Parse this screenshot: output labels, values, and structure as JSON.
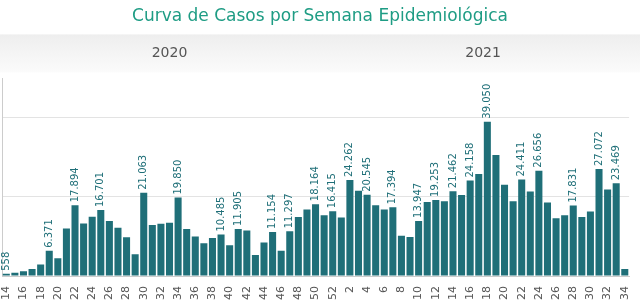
{
  "chart_data": {
    "type": "bar",
    "title": "Curva de Casos por Semana Epidemiológica",
    "annotations": [
      "2020",
      "2021"
    ],
    "categories": [
      "14",
      null,
      "16",
      null,
      "18",
      null,
      "20",
      null,
      "22",
      null,
      "24",
      null,
      "26",
      null,
      "28",
      null,
      "30",
      null,
      "32",
      null,
      "34",
      null,
      "36",
      null,
      "38",
      null,
      "40",
      null,
      "42",
      null,
      "44",
      null,
      "46",
      null,
      "48",
      null,
      "50",
      null,
      "52",
      null,
      "2",
      null,
      "4",
      null,
      "6",
      null,
      "8",
      null,
      "10",
      null,
      "12",
      null,
      "14",
      null,
      "16",
      null,
      "18",
      null,
      "20",
      null,
      "22",
      null,
      "24",
      null,
      "26",
      null,
      "28",
      null,
      "30",
      null,
      "32",
      null,
      "34"
    ],
    "values": [
      558,
      800,
      1200,
      1800,
      2900,
      6371,
      4500,
      12000,
      17894,
      13300,
      15000,
      16701,
      13900,
      12200,
      9800,
      5500,
      21063,
      12900,
      13200,
      13500,
      19850,
      11900,
      10000,
      8300,
      9600,
      10485,
      7800,
      11905,
      11500,
      5300,
      8500,
      11154,
      6400,
      11297,
      14900,
      16800,
      18164,
      15400,
      16415,
      14800,
      24262,
      21600,
      20545,
      17900,
      16800,
      17394,
      10200,
      9900,
      13947,
      18700,
      19253,
      18900,
      21462,
      20500,
      24158,
      25800,
      39050,
      30600,
      23100,
      18900,
      24411,
      21400,
      26656,
      18600,
      14600,
      15400,
      17831,
      14900,
      16300,
      27072,
      21900,
      23469,
      1800
    ],
    "value_labels": [
      "558",
      null,
      null,
      null,
      null,
      "6.371",
      null,
      null,
      "17.894",
      null,
      null,
      "16.701",
      null,
      null,
      null,
      null,
      "21.063",
      null,
      null,
      null,
      "19.850",
      null,
      null,
      null,
      null,
      "10.485",
      null,
      "11.905",
      null,
      null,
      null,
      "11.154",
      null,
      "11.297",
      null,
      null,
      "18.164",
      null,
      "16.415",
      null,
      "24.262",
      null,
      "20.545",
      null,
      null,
      "17.394",
      null,
      null,
      "13.947",
      null,
      "19.253",
      null,
      "21.462",
      null,
      "24.158",
      null,
      "39.050",
      null,
      null,
      null,
      "24.411",
      null,
      "26.656",
      null,
      null,
      null,
      "17.831",
      null,
      null,
      "27.072",
      null,
      "23.469",
      null
    ],
    "color": "#1f6f78",
    "ylim": [
      0,
      50000
    ],
    "yticks": [
      0,
      20000,
      40000
    ],
    "grid": true,
    "data_labels": true,
    "tick_labels": "x"
  }
}
